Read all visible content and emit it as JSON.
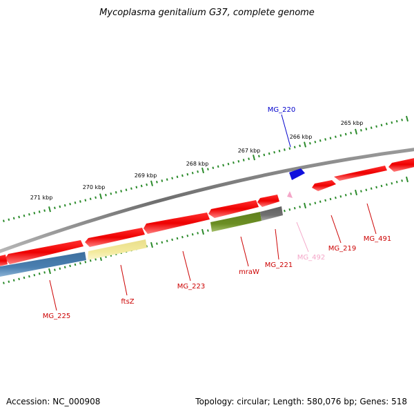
{
  "title": "Mycoplasma genitalium G37, complete genome",
  "footer": {
    "accession": "Accession: NC_000908",
    "summary": "Topology: circular; Length: 580,076 bp; Genes: 518"
  },
  "ruler": {
    "unit": "kbp",
    "labels": [
      "265 kbp",
      "266 kbp",
      "267 kbp",
      "268 kbp",
      "269 kbp",
      "270 kbp",
      "271 kbp"
    ]
  },
  "genes": [
    {
      "name": "MG_220",
      "color": "#0000cc"
    },
    {
      "name": "MG_491",
      "color": "#cc0000"
    },
    {
      "name": "MG_219",
      "color": "#cc0000"
    },
    {
      "name": "MG_492",
      "color": "#f4a6c8"
    },
    {
      "name": "MG_221",
      "color": "#cc0000"
    },
    {
      "name": "mraW",
      "color": "#cc0000"
    },
    {
      "name": "MG_223",
      "color": "#cc0000"
    },
    {
      "name": "ftsZ",
      "color": "#cc0000"
    },
    {
      "name": "MG_225",
      "color": "#cc0000"
    }
  ],
  "colors": {
    "cds": "#ee0000",
    "backbone": "#808080",
    "ruler": "#2a8a2a",
    "blue_feature": "#4a7fb0",
    "yellow_feature": "#f0e68c",
    "olive_feature": "#6b8e23",
    "grey_feature": "#707070"
  }
}
